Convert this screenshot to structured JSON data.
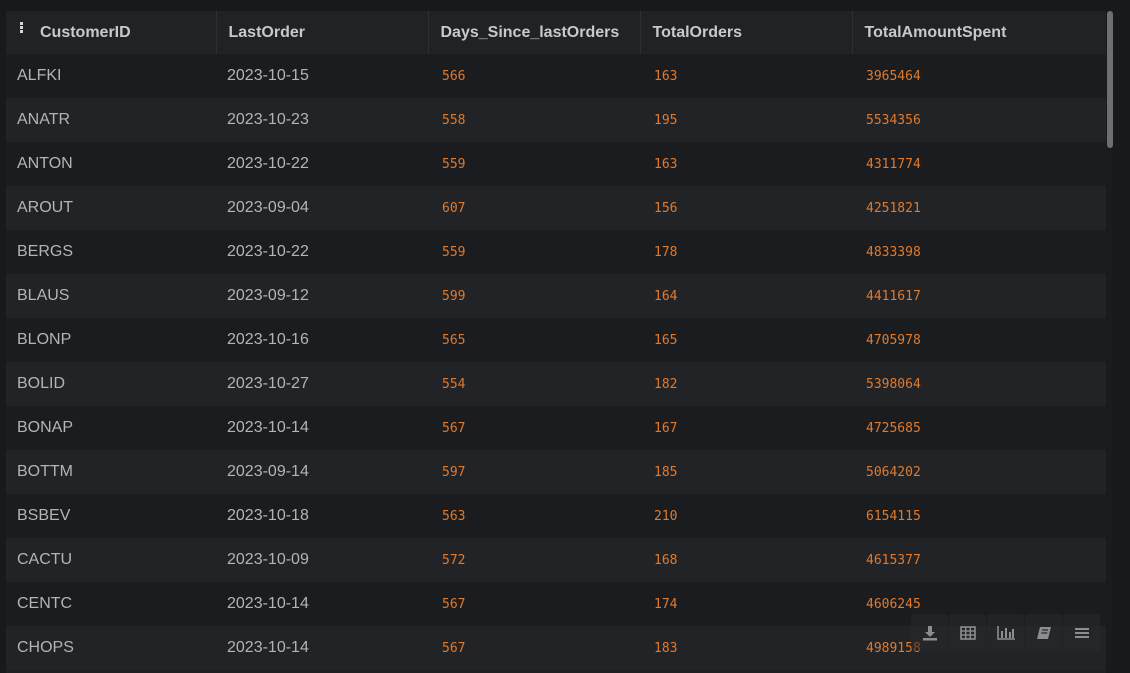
{
  "table": {
    "columns": [
      "CustomerID",
      "LastOrder",
      "Days_Since_lastOrders",
      "TotalOrders",
      "TotalAmountSpent"
    ],
    "rows": [
      [
        "ALFKI",
        "2023-10-15",
        "566",
        "163",
        "3965464"
      ],
      [
        "ANATR",
        "2023-10-23",
        "558",
        "195",
        "5534356"
      ],
      [
        "ANTON",
        "2023-10-22",
        "559",
        "163",
        "4311774"
      ],
      [
        "AROUT",
        "2023-09-04",
        "607",
        "156",
        "4251821"
      ],
      [
        "BERGS",
        "2023-10-22",
        "559",
        "178",
        "4833398"
      ],
      [
        "BLAUS",
        "2023-09-12",
        "599",
        "164",
        "4411617"
      ],
      [
        "BLONP",
        "2023-10-16",
        "565",
        "165",
        "4705978"
      ],
      [
        "BOLID",
        "2023-10-27",
        "554",
        "182",
        "5398064"
      ],
      [
        "BONAP",
        "2023-10-14",
        "567",
        "167",
        "4725685"
      ],
      [
        "BOTTM",
        "2023-09-14",
        "597",
        "185",
        "5064202"
      ],
      [
        "BSBEV",
        "2023-10-18",
        "563",
        "210",
        "6154115"
      ],
      [
        "CACTU",
        "2023-10-09",
        "572",
        "168",
        "4615377"
      ],
      [
        "CENTC",
        "2023-10-14",
        "567",
        "174",
        "4606245"
      ],
      [
        "CHOPS",
        "2023-10-14",
        "567",
        "183",
        "4989158"
      ]
    ]
  },
  "toolbar": {
    "icons": [
      "download-icon",
      "table-icon",
      "bar-chart-icon",
      "notebook-icon",
      "menu-icon"
    ]
  },
  "colors": {
    "background": "#18191c",
    "header": "#212226",
    "row_odd": "#1b1c1f",
    "row_even": "#222327",
    "text": "#b4b4b8",
    "numeric": "#e07a2d"
  }
}
